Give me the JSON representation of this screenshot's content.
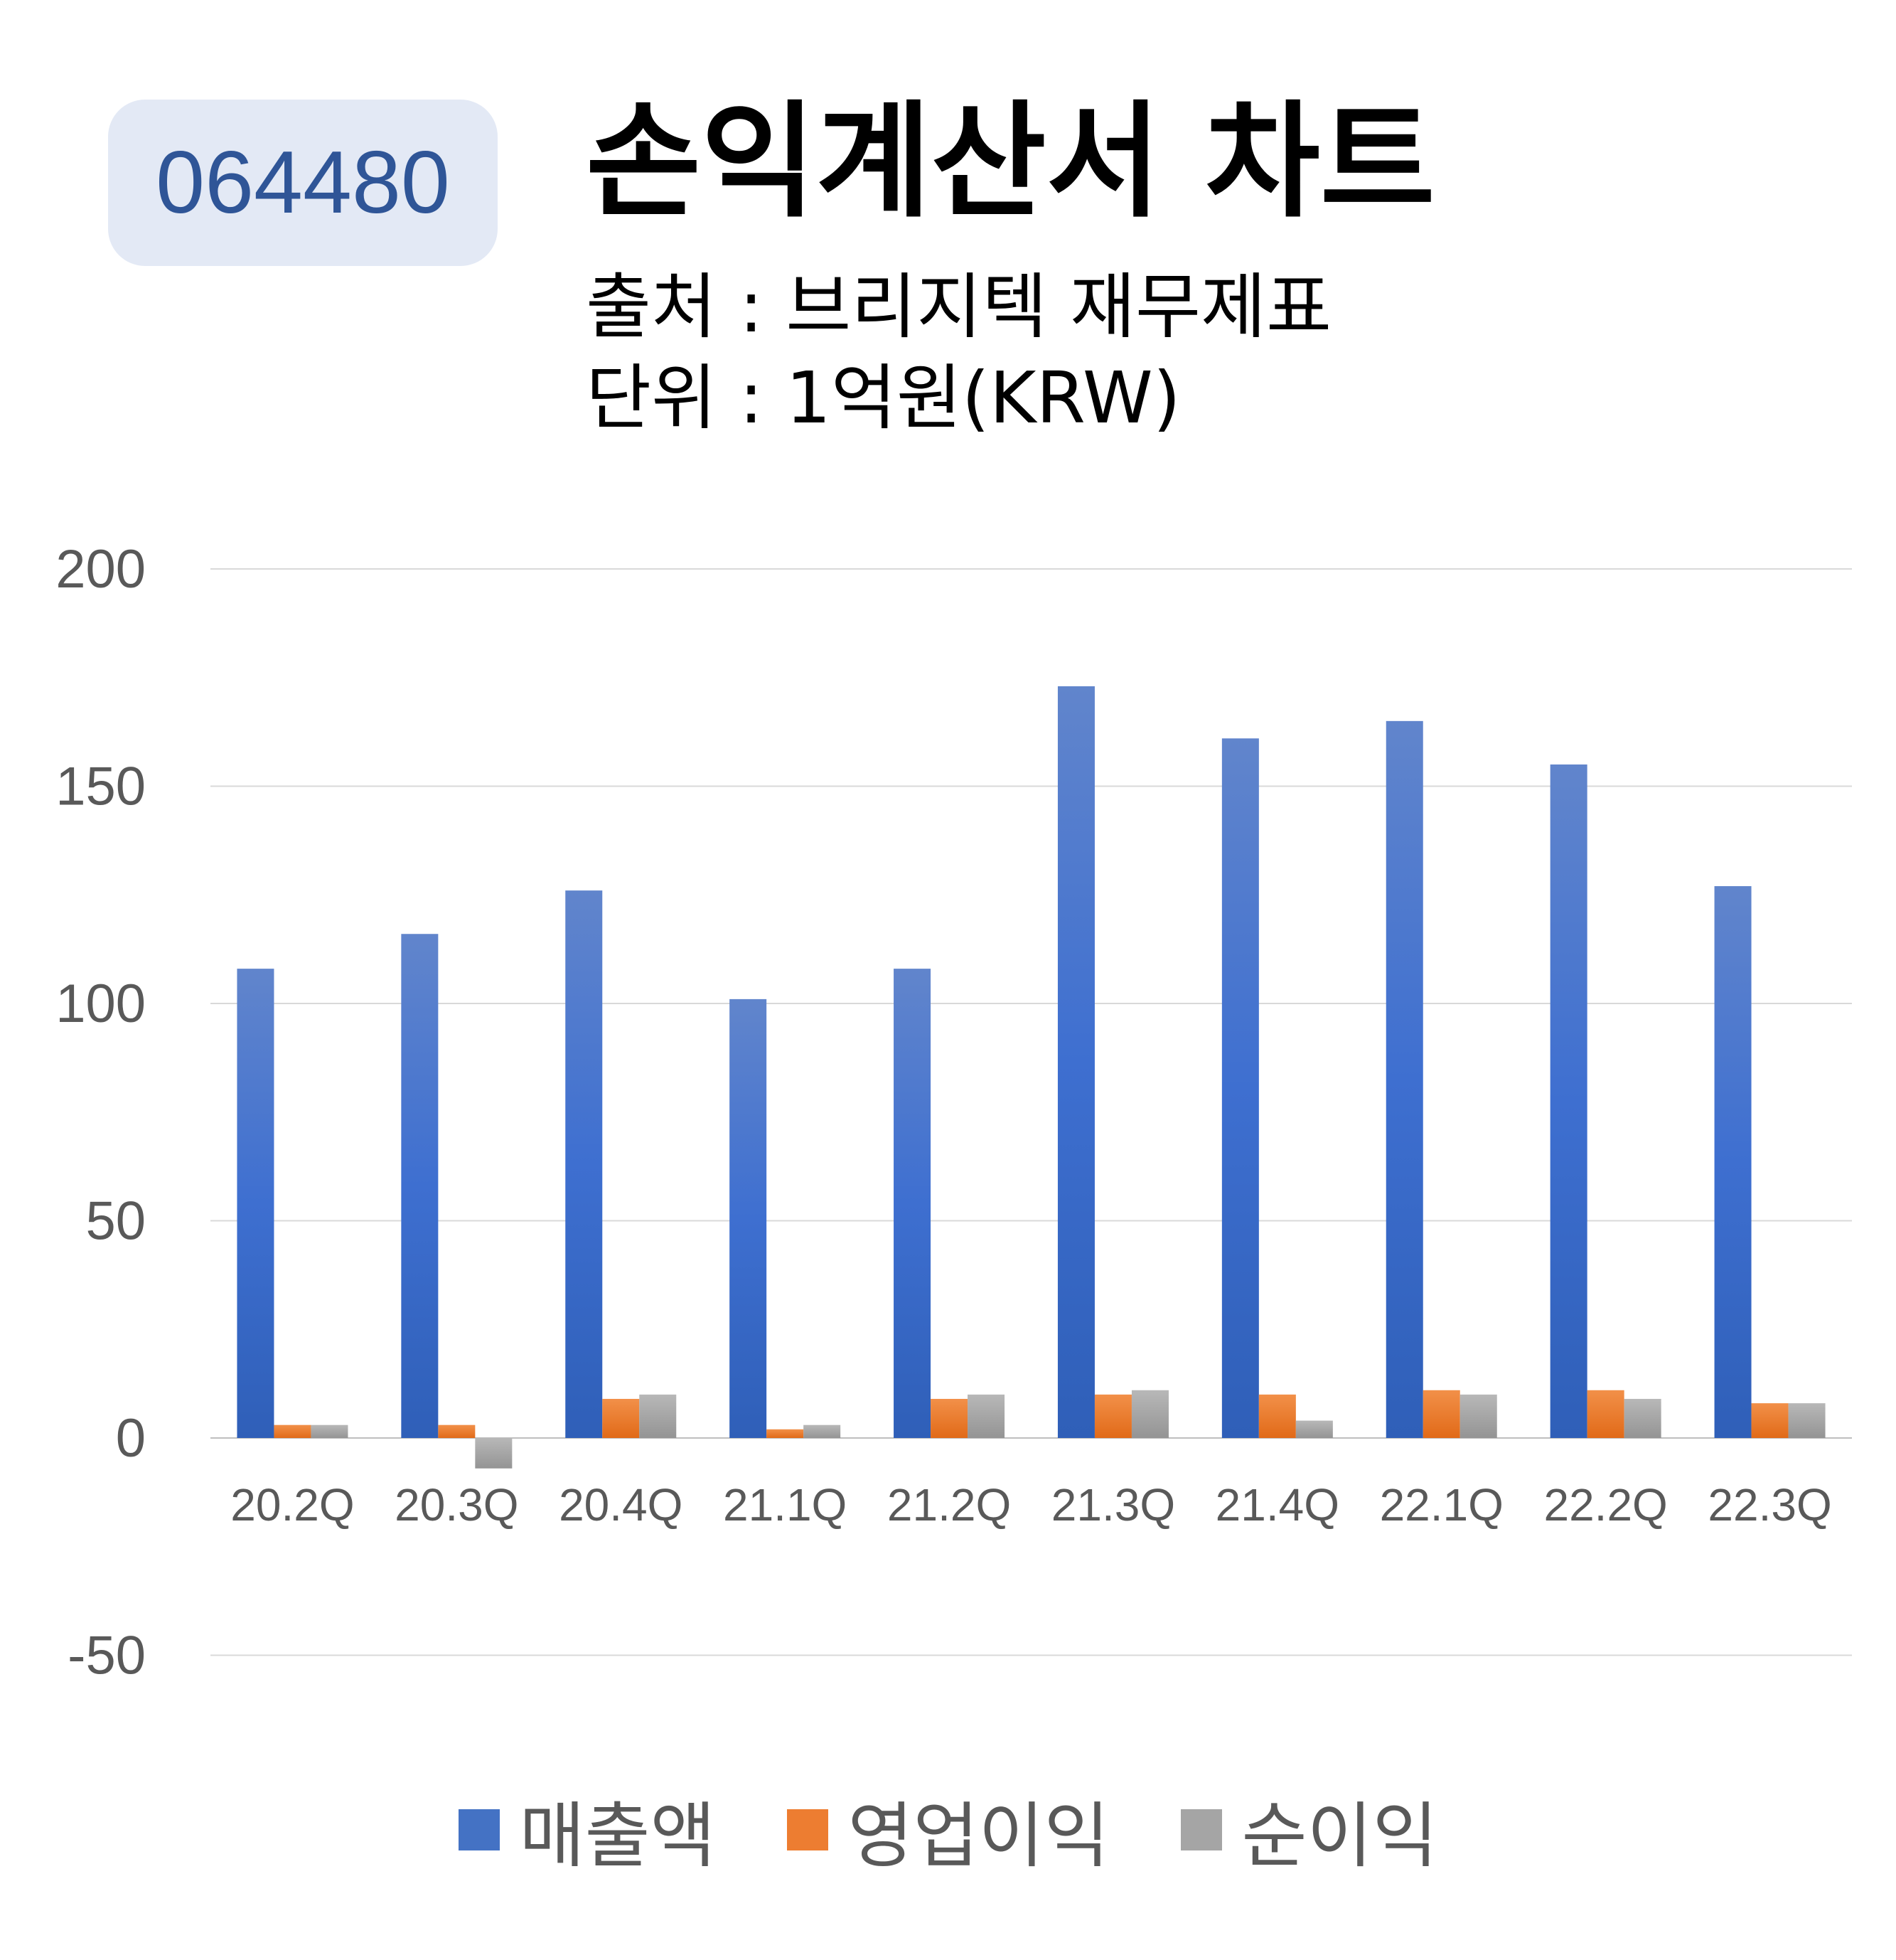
{
  "header": {
    "code": "064480",
    "title": "손익계산서 차트",
    "source": "출처 : 브리지텍 재무제표",
    "unit": "단위 : 1억원(KRW)"
  },
  "colors": {
    "revenue": "#4472c4",
    "operating_profit": "#ed7d31",
    "net_profit": "#a5a5a5",
    "grid": "#d9d9d9",
    "badge_bg": "#e3e9f5",
    "badge_text": "#2f5597"
  },
  "chart_data": {
    "type": "bar",
    "categories": [
      "20.2Q",
      "20.3Q",
      "20.4Q",
      "21.1Q",
      "21.2Q",
      "21.3Q",
      "21.4Q",
      "22.1Q",
      "22.2Q",
      "22.3Q"
    ],
    "series": [
      {
        "name": "매출액",
        "values": [
          108,
          116,
          126,
          101,
          108,
          173,
          161,
          165,
          155,
          127
        ]
      },
      {
        "name": "영업이익",
        "values": [
          3,
          3,
          9,
          2,
          9,
          10,
          10,
          11,
          11,
          8
        ]
      },
      {
        "name": "순이익",
        "values": [
          3,
          -7,
          10,
          3,
          10,
          11,
          4,
          10,
          9,
          8
        ]
      }
    ],
    "yticks": [
      200,
      150,
      100,
      50,
      0,
      -50
    ],
    "ylim": [
      -50,
      200
    ],
    "grid": true,
    "legend_position": "bottom"
  }
}
